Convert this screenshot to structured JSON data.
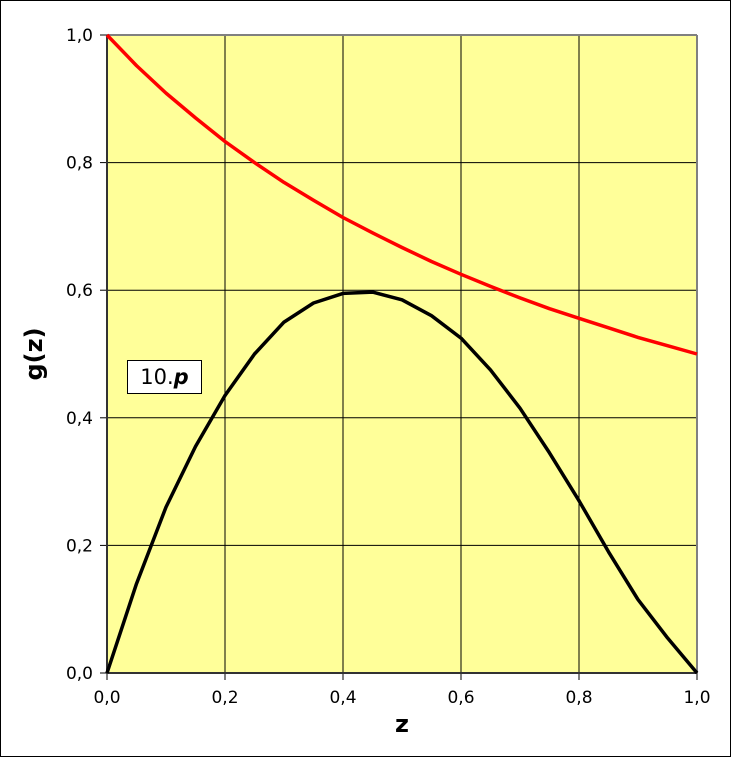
{
  "chart_data": {
    "type": "line",
    "title": "",
    "xlabel": "z",
    "ylabel": "g(z)",
    "xlim": [
      0,
      1
    ],
    "ylim": [
      0,
      1
    ],
    "x_ticks": [
      "0,0",
      "0,2",
      "0,4",
      "0,6",
      "0,8",
      "1,0"
    ],
    "y_ticks": [
      "0,0",
      "0,2",
      "0,4",
      "0,6",
      "0,8",
      "1,0"
    ],
    "grid": true,
    "plot_background": "#FFFF99",
    "annotation": {
      "prefix": "10.",
      "emphasis": "p"
    },
    "x": [
      0,
      0.05,
      0.1,
      0.15,
      0.2,
      0.25,
      0.3,
      0.35,
      0.4,
      0.45,
      0.5,
      0.55,
      0.6,
      0.65,
      0.7,
      0.75,
      0.8,
      0.85,
      0.9,
      0.95,
      1.0
    ],
    "series": [
      {
        "name": "red",
        "color": "#FF0000",
        "values": [
          1.0,
          0.952,
          0.909,
          0.87,
          0.833,
          0.8,
          0.769,
          0.741,
          0.714,
          0.69,
          0.667,
          0.645,
          0.625,
          0.606,
          0.588,
          0.571,
          0.556,
          0.541,
          0.526,
          0.513,
          0.5
        ]
      },
      {
        "name": "black",
        "color": "#000000",
        "values": [
          0.0,
          0.14,
          0.26,
          0.355,
          0.435,
          0.5,
          0.55,
          0.58,
          0.595,
          0.597,
          0.585,
          0.56,
          0.525,
          0.475,
          0.415,
          0.345,
          0.27,
          0.19,
          0.115,
          0.055,
          0.0
        ]
      }
    ]
  }
}
